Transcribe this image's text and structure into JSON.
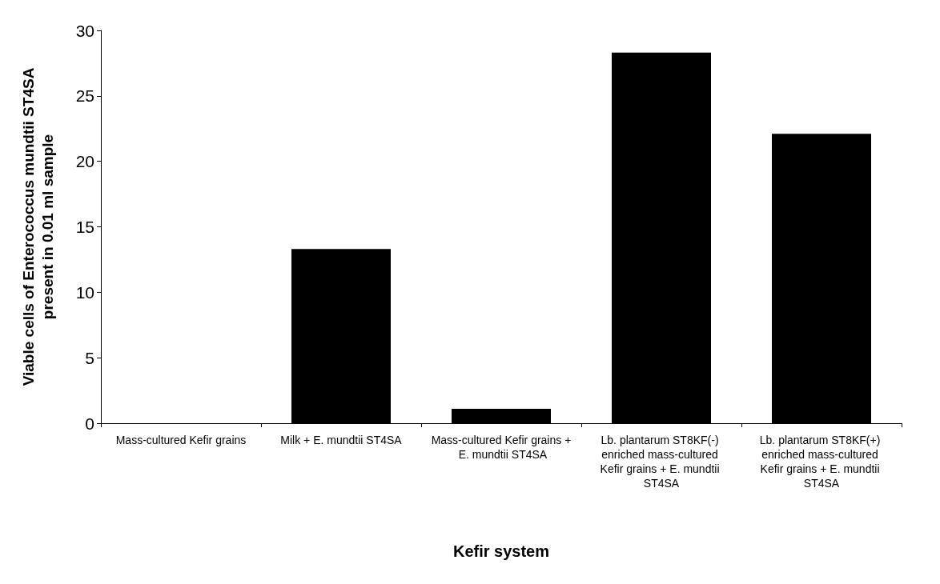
{
  "chart_data": {
    "type": "bar",
    "xlabel": "Kefir system",
    "ylabel": "Viable cells of Enterococcus mundtii ST4SA\npresent in 0.01 ml sample",
    "categories": [
      "Mass-cultured Kefir grains",
      "Milk + E. mundtii ST4SA",
      "Mass-cultured Kefir grains + E. mundtii ST4SA",
      "Lb. plantarum ST8KF(-) enriched mass-cultured Kefir grains + E. mundtii ST4SA",
      "Lb. plantarum ST8KF(+) enriched mass-cultured Kefir grains + E. mundtii ST4SA"
    ],
    "values": [
      0,
      13.3,
      1.1,
      28.3,
      22.1
    ],
    "color": "#000000",
    "ylim": [
      0,
      30
    ],
    "yticks": [
      0,
      5,
      10,
      15,
      20,
      25,
      30
    ],
    "grid": false
  }
}
